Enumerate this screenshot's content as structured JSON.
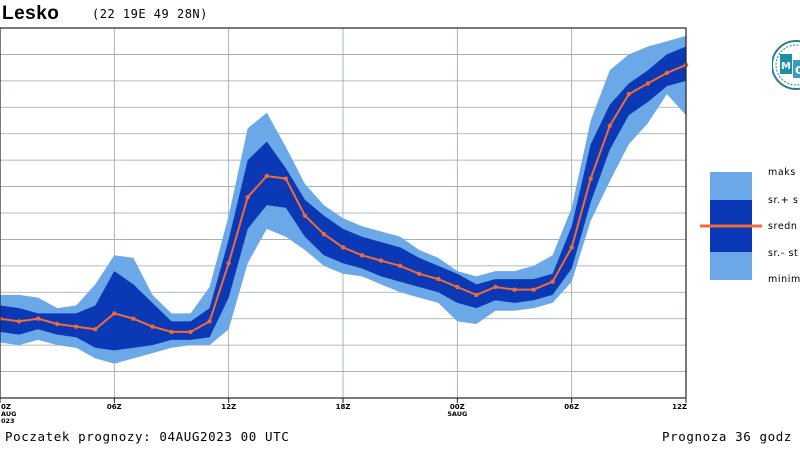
{
  "header": {
    "station": "Lesko",
    "coords": "(22 19E 49 28N)"
  },
  "footer": {
    "start_label": "Poczatek prognozy: 04AUG2023 00 UTC",
    "forecast_label": "Prognoza 36 godz"
  },
  "legend": {
    "max": "maks",
    "mean_plus_sd": "sr.+ s",
    "mean": "sredn",
    "mean_minus_sd": "sr.- st",
    "min": "minim"
  },
  "colors": {
    "outer_band": "#6aa8e8",
    "inner_band": "#0b38b4",
    "mean_line": "#f06a3a",
    "grid": "#9aa4b4"
  },
  "chart_data": {
    "type": "area",
    "title": "Lesko",
    "x": [
      0,
      1,
      2,
      3,
      4,
      5,
      6,
      7,
      8,
      9,
      10,
      11,
      12,
      13,
      14,
      15,
      16,
      17,
      18,
      19,
      20,
      21,
      22,
      23,
      24,
      25,
      26,
      27,
      28,
      29,
      30,
      31,
      32,
      33,
      34,
      35,
      36
    ],
    "x_tick_labels": [
      {
        "x": 0,
        "label": "0Z",
        "sub": [
          "AUG",
          "023"
        ]
      },
      {
        "x": 6,
        "label": "06Z",
        "sub": []
      },
      {
        "x": 12,
        "label": "12Z",
        "sub": []
      },
      {
        "x": 18,
        "label": "18Z",
        "sub": []
      },
      {
        "x": 24,
        "label": "00Z",
        "sub": [
          "5AUG"
        ]
      },
      {
        "x": 30,
        "label": "06Z",
        "sub": []
      },
      {
        "x": 36,
        "label": "12Z",
        "sub": []
      }
    ],
    "xlim": [
      0,
      36
    ],
    "ylim": [
      0,
      14
    ],
    "y_gridlines": 14,
    "grid": true,
    "legend_placement": "right",
    "series": [
      {
        "name": "maks",
        "values": [
          3.9,
          3.9,
          3.8,
          3.4,
          3.5,
          4.3,
          5.4,
          5.3,
          3.9,
          3.2,
          3.2,
          4.2,
          6.9,
          10.2,
          10.8,
          9.5,
          8.1,
          7.3,
          6.8,
          6.5,
          6.3,
          6.1,
          5.6,
          5.3,
          4.8,
          4.6,
          4.8,
          4.8,
          5.0,
          5.4,
          7.2,
          10.5,
          12.4,
          13.0,
          13.3,
          13.5,
          13.7
        ]
      },
      {
        "name": "sr.+ s",
        "values": [
          3.5,
          3.4,
          3.2,
          3.2,
          3.2,
          3.5,
          4.8,
          4.3,
          3.6,
          2.9,
          2.9,
          3.4,
          6.0,
          9.0,
          9.7,
          8.7,
          7.5,
          6.9,
          6.4,
          6.1,
          5.9,
          5.7,
          5.3,
          5.0,
          4.7,
          4.3,
          4.5,
          4.5,
          4.5,
          4.7,
          6.5,
          9.6,
          11.1,
          11.9,
          12.4,
          13.0,
          13.3
        ]
      },
      {
        "name": "sredn",
        "values": [
          3.0,
          2.9,
          3.0,
          2.8,
          2.7,
          2.6,
          3.2,
          3.0,
          2.7,
          2.5,
          2.5,
          2.9,
          5.1,
          7.6,
          8.4,
          8.3,
          6.9,
          6.2,
          5.7,
          5.4,
          5.2,
          5.0,
          4.7,
          4.5,
          4.2,
          3.9,
          4.2,
          4.1,
          4.1,
          4.4,
          5.7,
          8.3,
          10.3,
          11.5,
          11.9,
          12.3,
          12.6
        ]
      },
      {
        "name": "sr.- st",
        "values": [
          2.5,
          2.4,
          2.6,
          2.4,
          2.3,
          1.9,
          1.8,
          1.9,
          2.0,
          2.2,
          2.2,
          2.3,
          3.8,
          6.4,
          7.3,
          7.2,
          6.1,
          5.4,
          5.1,
          4.9,
          4.6,
          4.4,
          4.2,
          4.0,
          3.6,
          3.4,
          3.7,
          3.6,
          3.7,
          3.9,
          4.9,
          7.4,
          9.4,
          10.7,
          11.2,
          11.8,
          12.0
        ]
      },
      {
        "name": "minim",
        "values": [
          2.1,
          2.0,
          2.2,
          2.0,
          1.9,
          1.5,
          1.3,
          1.5,
          1.7,
          1.9,
          2.0,
          2.0,
          2.6,
          5.1,
          6.4,
          6.1,
          5.6,
          5.0,
          4.7,
          4.6,
          4.3,
          4.0,
          3.8,
          3.6,
          2.9,
          2.8,
          3.3,
          3.3,
          3.4,
          3.6,
          4.4,
          6.7,
          8.2,
          9.6,
          10.4,
          11.5,
          10.7
        ]
      }
    ]
  }
}
